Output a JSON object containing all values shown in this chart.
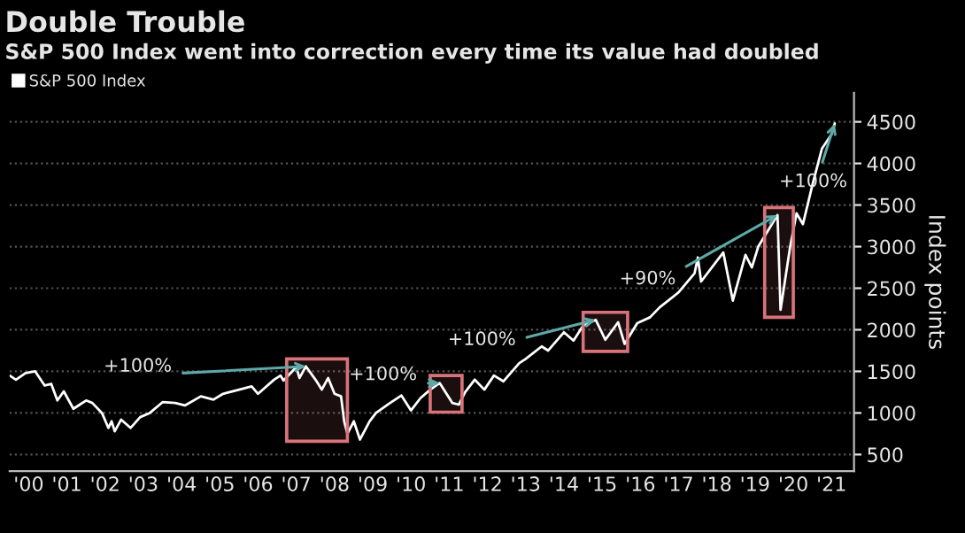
{
  "chart_data": {
    "type": "line",
    "title": "Double Trouble",
    "subtitle": "S&P 500 Index went into correction every time its value had doubled",
    "ylabel": "Index points",
    "x": [
      "2000-01",
      "2000-03",
      "2000-06",
      "2000-09",
      "2000-12",
      "2001-02",
      "2001-04",
      "2001-06",
      "2001-09",
      "2001-11",
      "2002-01",
      "2002-03",
      "2002-06",
      "2002-08",
      "2002-09",
      "2002-10",
      "2002-12",
      "2003-03",
      "2003-06",
      "2003-09",
      "2004-01",
      "2004-05",
      "2004-08",
      "2005-01",
      "2005-05",
      "2005-08",
      "2006-01",
      "2006-05",
      "2006-07",
      "2006-12",
      "2007-02",
      "2007-03",
      "2007-07",
      "2007-08",
      "2007-10",
      "2008-01",
      "2008-03",
      "2008-05",
      "2008-07",
      "2008-09",
      "2008-10",
      "2008-11",
      "2009-01",
      "2009-03",
      "2009-06",
      "2009-08",
      "2009-12",
      "2010-04",
      "2010-07",
      "2010-10",
      "2011-01",
      "2011-04",
      "2011-08",
      "2011-10",
      "2011-12",
      "2012-03",
      "2012-06",
      "2012-09",
      "2012-12",
      "2013-05",
      "2013-07",
      "2013-12",
      "2014-02",
      "2014-07",
      "2014-10",
      "2015-01",
      "2015-05",
      "2015-08",
      "2015-12",
      "2016-02",
      "2016-06",
      "2016-10",
      "2017-01",
      "2017-07",
      "2017-12",
      "2018-01",
      "2018-02",
      "2018-09",
      "2018-12",
      "2019-04",
      "2019-06",
      "2019-08",
      "2020-02",
      "2020-03",
      "2020-06",
      "2020-08",
      "2020-10",
      "2021-01",
      "2021-04",
      "2021-07",
      "2021-08"
    ],
    "series": [
      {
        "name": "S&P 500 Index",
        "color": "#ffffff",
        "values": [
          1450,
          1400,
          1480,
          1500,
          1330,
          1350,
          1150,
          1260,
          1050,
          1100,
          1150,
          1120,
          1000,
          820,
          900,
          780,
          920,
          820,
          950,
          1000,
          1130,
          1120,
          1090,
          1200,
          1160,
          1230,
          1280,
          1320,
          1230,
          1400,
          1450,
          1390,
          1550,
          1420,
          1560,
          1400,
          1280,
          1420,
          1230,
          1200,
          900,
          750,
          900,
          680,
          900,
          1000,
          1110,
          1210,
          1030,
          1180,
          1280,
          1360,
          1120,
          1100,
          1250,
          1400,
          1280,
          1450,
          1380,
          1600,
          1650,
          1800,
          1750,
          1970,
          1870,
          2050,
          2120,
          1880,
          2090,
          1830,
          2080,
          2150,
          2270,
          2450,
          2680,
          2870,
          2580,
          2930,
          2350,
          2900,
          2750,
          3000,
          3380,
          2240,
          3000,
          3400,
          3270,
          3750,
          4180,
          4350,
          4480
        ]
      }
    ],
    "xlim": [
      "2000-01-01",
      "2022-02-01"
    ],
    "xticks": [
      {
        "value": "2000-07-01",
        "label": "'00"
      },
      {
        "value": "2001-07-01",
        "label": "'01"
      },
      {
        "value": "2002-07-01",
        "label": "'02"
      },
      {
        "value": "2003-07-01",
        "label": "'03"
      },
      {
        "value": "2004-07-01",
        "label": "'04"
      },
      {
        "value": "2005-07-01",
        "label": "'05"
      },
      {
        "value": "2006-07-01",
        "label": "'06"
      },
      {
        "value": "2007-07-01",
        "label": "'07"
      },
      {
        "value": "2008-07-01",
        "label": "'08"
      },
      {
        "value": "2009-07-01",
        "label": "'09"
      },
      {
        "value": "2010-07-01",
        "label": "'10"
      },
      {
        "value": "2011-07-01",
        "label": "'11"
      },
      {
        "value": "2012-07-01",
        "label": "'12"
      },
      {
        "value": "2013-07-01",
        "label": "'13"
      },
      {
        "value": "2014-07-01",
        "label": "'14"
      },
      {
        "value": "2015-07-01",
        "label": "'15"
      },
      {
        "value": "2016-07-01",
        "label": "'16"
      },
      {
        "value": "2017-07-01",
        "label": "'17"
      },
      {
        "value": "2018-07-01",
        "label": "'18"
      },
      {
        "value": "2019-07-01",
        "label": "'19"
      },
      {
        "value": "2020-07-01",
        "label": "'20"
      },
      {
        "value": "2021-07-01",
        "label": "'21"
      }
    ],
    "ylim": [
      300,
      4850
    ],
    "yticks": [
      500,
      1000,
      1500,
      2000,
      2500,
      3000,
      3500,
      4000,
      4500
    ],
    "grid": "y",
    "legend": "top left",
    "annotations": [
      {
        "text": "+100%",
        "x": "2007-10",
        "y": 1560
      },
      {
        "text": "+100%",
        "x": "2011-04",
        "y": 1360
      },
      {
        "text": "+100%",
        "x": "2015-05",
        "y": 2120
      },
      {
        "text": "+90%",
        "x": "2020-02",
        "y": 3380
      },
      {
        "text": "+100%",
        "x": "2021-08",
        "y": 4480
      }
    ],
    "bands": [
      {
        "axis": "x",
        "from": "2007-04",
        "to": "2008-11",
        "color": "#d9737a"
      },
      {
        "axis": "x",
        "from": "2011-01",
        "to": "2011-11",
        "color": "#d9737a"
      },
      {
        "axis": "x",
        "from": "2015-01",
        "to": "2016-03",
        "color": "#d9737a"
      },
      {
        "axis": "x",
        "from": "2019-10",
        "to": "2020-07",
        "color": "#d9737a"
      }
    ]
  }
}
